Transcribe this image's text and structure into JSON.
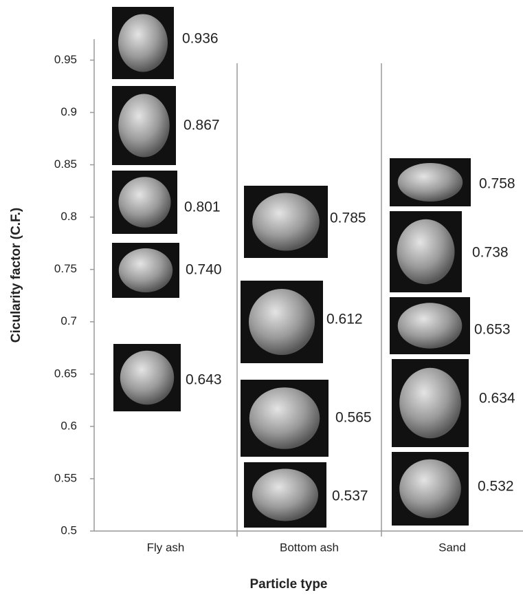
{
  "chart_data": {
    "type": "particle-images",
    "y_label": "Cicularity factor (C.F.)",
    "x_label": "Particle type",
    "categories": [
      "Fly ash",
      "Bottom ash",
      "Sand"
    ],
    "values": [
      [
        0.936,
        0.867,
        0.801,
        0.74,
        0.643
      ],
      [
        0.785,
        0.612,
        0.565,
        0.537
      ],
      [
        0.758,
        0.738,
        0.653,
        0.634,
        0.532
      ]
    ],
    "value_labels": [
      [
        "0.936",
        "0.867",
        "0.801",
        "0.740",
        "0.643"
      ],
      [
        "0.785",
        "0.612",
        "0.565",
        "0.537"
      ],
      [
        "0.758",
        "0.738",
        "0.653",
        "0.634",
        "0.532"
      ]
    ],
    "ylim": [
      0.5,
      0.97
    ],
    "yticks": [
      {
        "value": 0.5,
        "label": "0.5"
      },
      {
        "value": 0.55,
        "label": "0.55"
      },
      {
        "value": 0.6,
        "label": "0.6"
      },
      {
        "value": 0.65,
        "label": "0.65"
      },
      {
        "value": 0.7,
        "label": "0.7"
      },
      {
        "value": 0.75,
        "label": "0.75"
      },
      {
        "value": 0.8,
        "label": "0.8"
      },
      {
        "value": 0.85,
        "label": "0.85"
      },
      {
        "value": 0.9,
        "label": "0.9"
      },
      {
        "value": 0.95,
        "label": "0.95"
      }
    ]
  }
}
